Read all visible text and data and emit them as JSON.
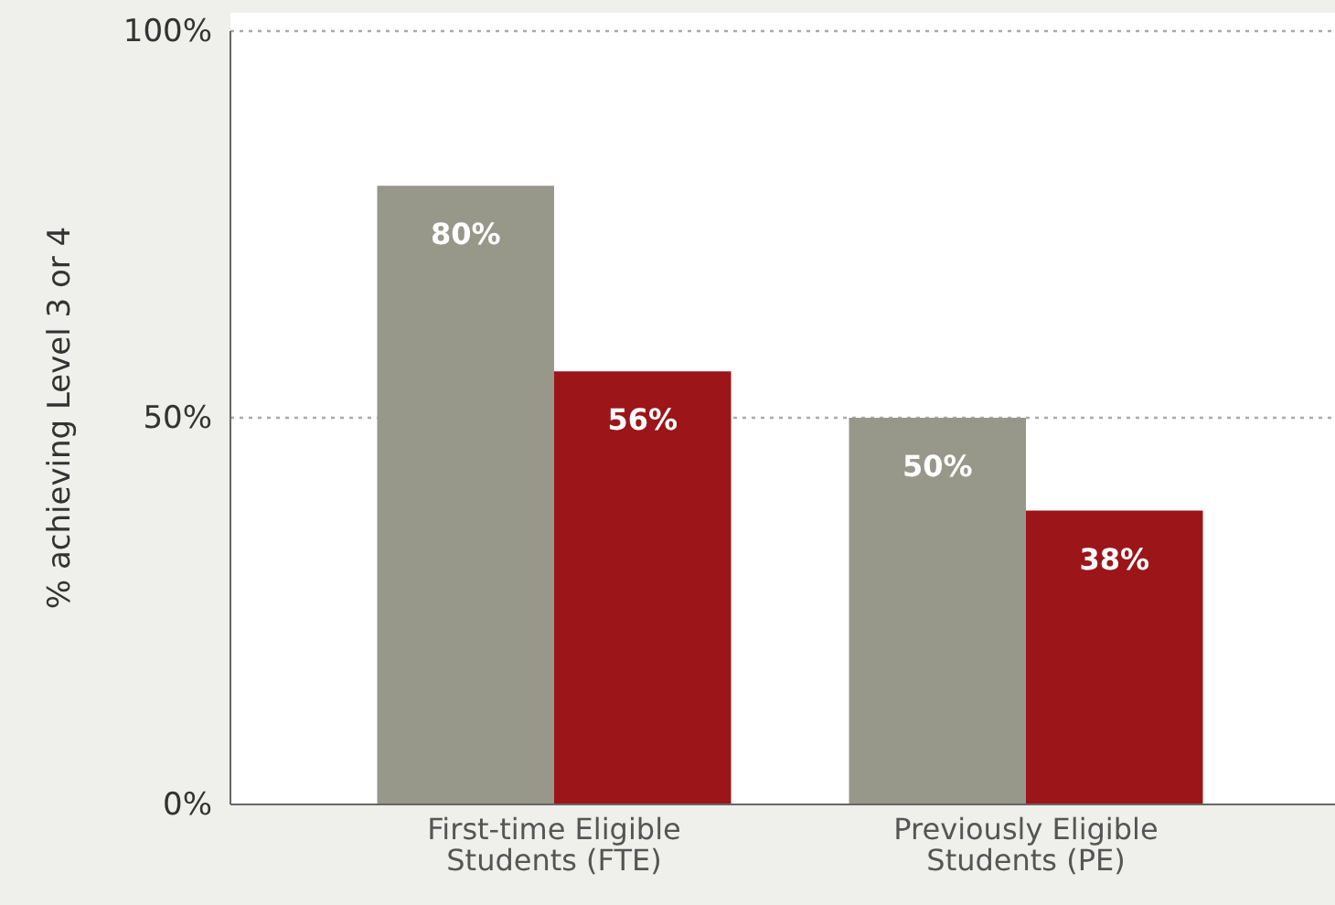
{
  "chart_data": {
    "type": "bar",
    "ylabel": "% achieving Level 3 or 4",
    "categories": [
      "First-time Eligible Students (FTE)",
      "Previously Eligible Students (PE)"
    ],
    "series": [
      {
        "color": "#97978a",
        "values": [
          80,
          50
        ],
        "value_labels": [
          "80%",
          "50%"
        ]
      },
      {
        "color": "#9b1519",
        "values": [
          56,
          38
        ],
        "value_labels": [
          "56%",
          "38%"
        ]
      }
    ],
    "ylim": [
      0,
      100
    ],
    "yticks": [
      {
        "value": 0,
        "label": "0%"
      },
      {
        "value": 50,
        "label": "50%"
      },
      {
        "value": 100,
        "label": "100%"
      }
    ],
    "grid": "y"
  }
}
